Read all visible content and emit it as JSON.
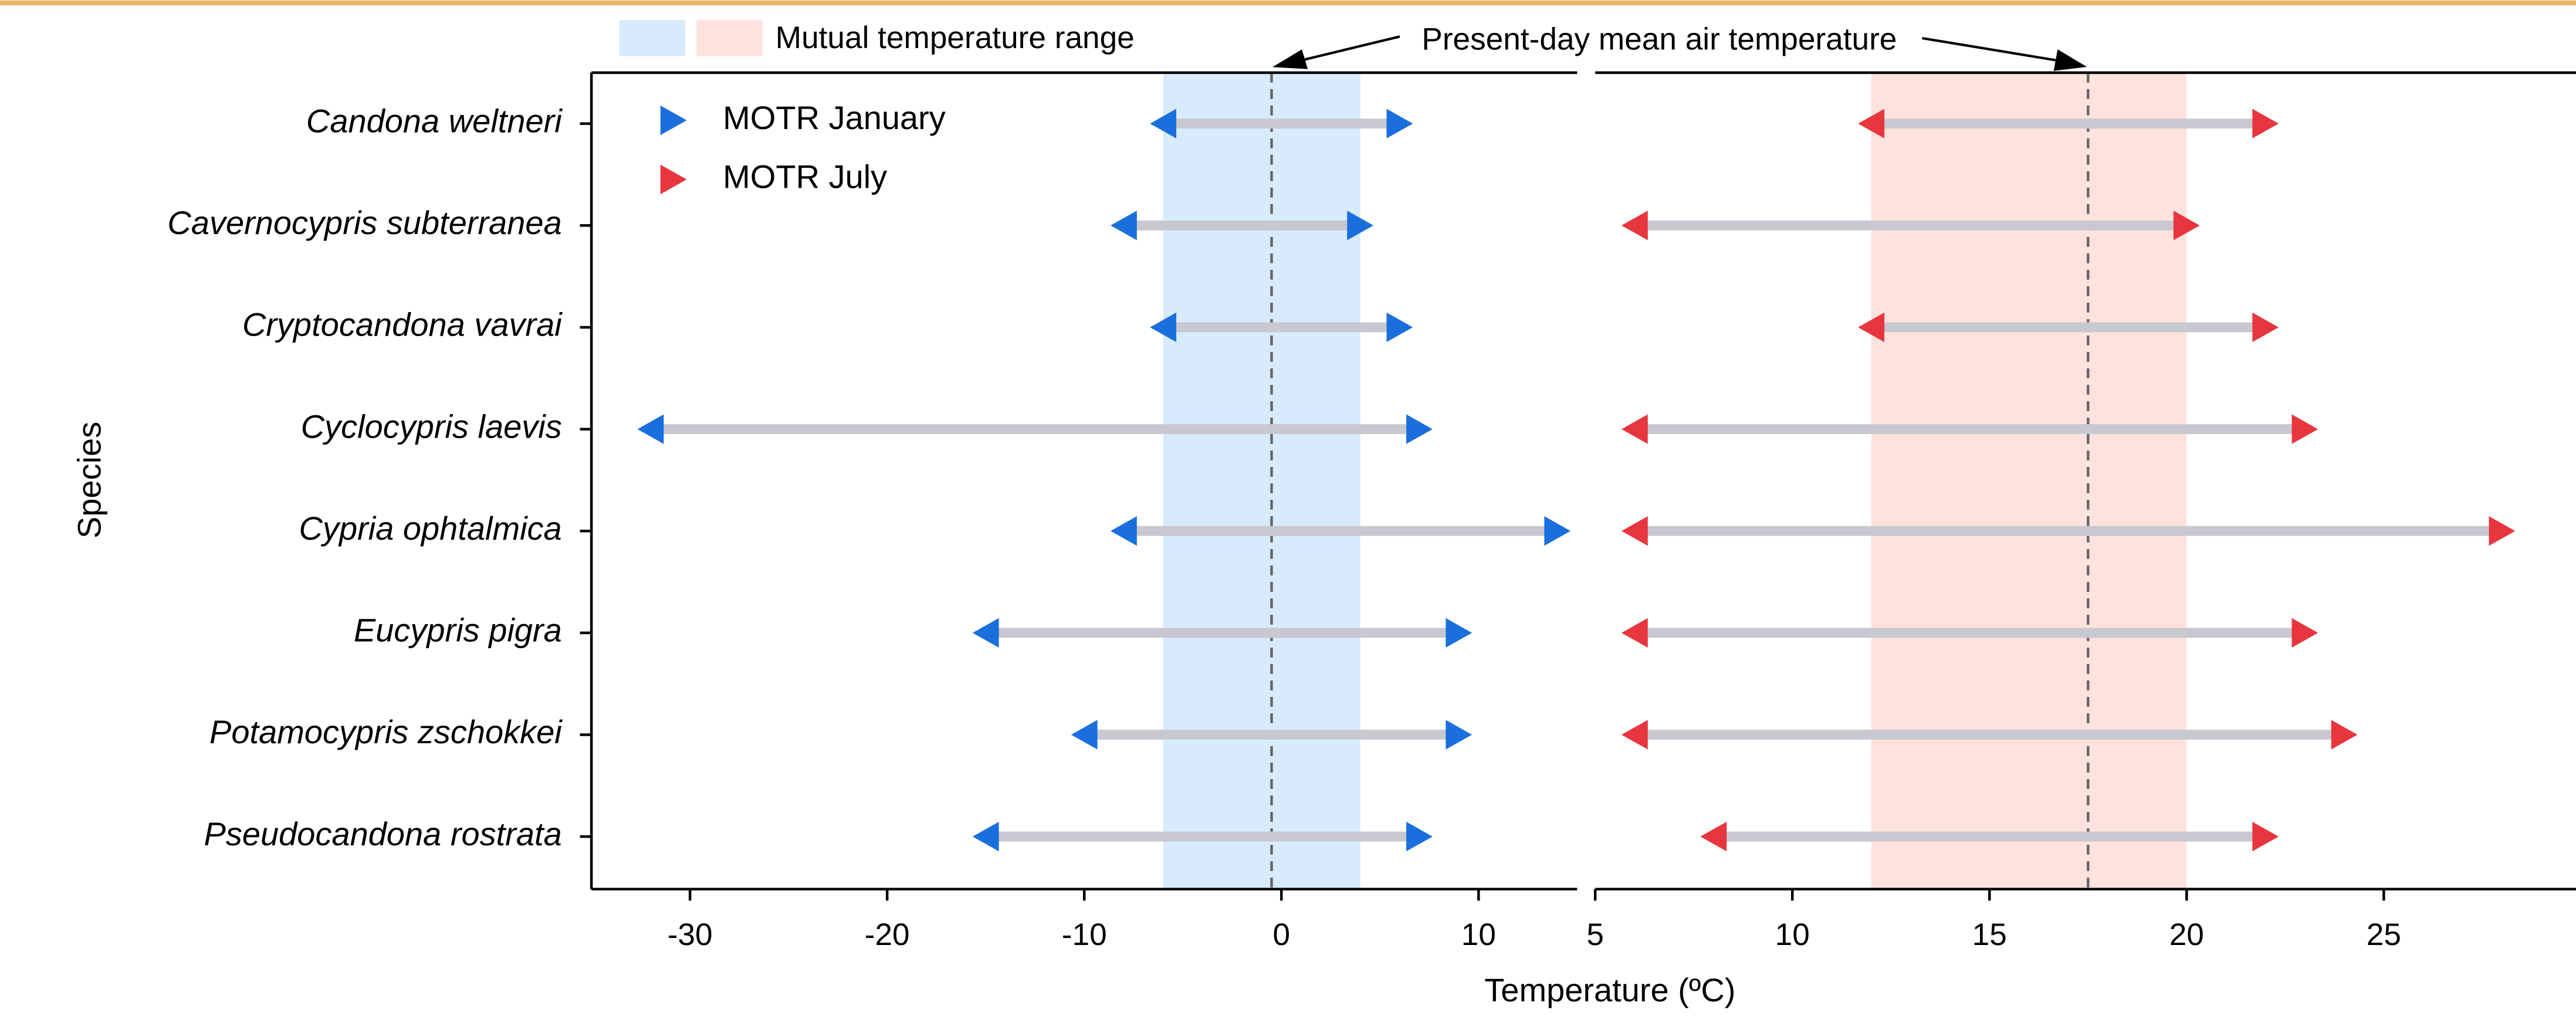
{
  "chart_data": {
    "type": "range-arrow",
    "ylabel": "Species",
    "xlabel": "Temperature (ºC)",
    "shade_legend": "Mutual temperature range",
    "reference_label": "Present-day mean air temperature",
    "categories": [
      "Candona weltneri",
      "Cavernocypris subterranea",
      "Cryptocandona vavrai",
      "Cyclocypris laevis",
      "Cypria ophtalmica",
      "Eucypris pigra",
      "Potamocypris zschokkei",
      "Pseudocandona rostrata"
    ],
    "series": [
      {
        "name": "MOTR January",
        "color": "#1a6fdc",
        "shade_color": "#d8ebfc",
        "min": [
          -6,
          -8,
          -6,
          -32,
          -8,
          -15,
          -10,
          -15
        ],
        "max": [
          6,
          4,
          6,
          7,
          14,
          9,
          9,
          7
        ],
        "xlim": [
          -35,
          15
        ],
        "xticks": [
          -30,
          -20,
          -10,
          0,
          10
        ],
        "shade": [
          -6,
          4
        ],
        "reference": -0.5
      },
      {
        "name": "MOTR July",
        "color": "#e8363f",
        "shade_color": "#fde2dd",
        "min": [
          12,
          6,
          12,
          6,
          6,
          6,
          6,
          8
        ],
        "max": [
          22,
          20,
          22,
          23,
          28,
          23,
          24,
          22
        ],
        "xlim": [
          5,
          30
        ],
        "xticks": [
          5,
          10,
          15,
          20,
          25
        ],
        "shade": [
          12,
          20
        ],
        "reference": 17.5
      }
    ]
  }
}
